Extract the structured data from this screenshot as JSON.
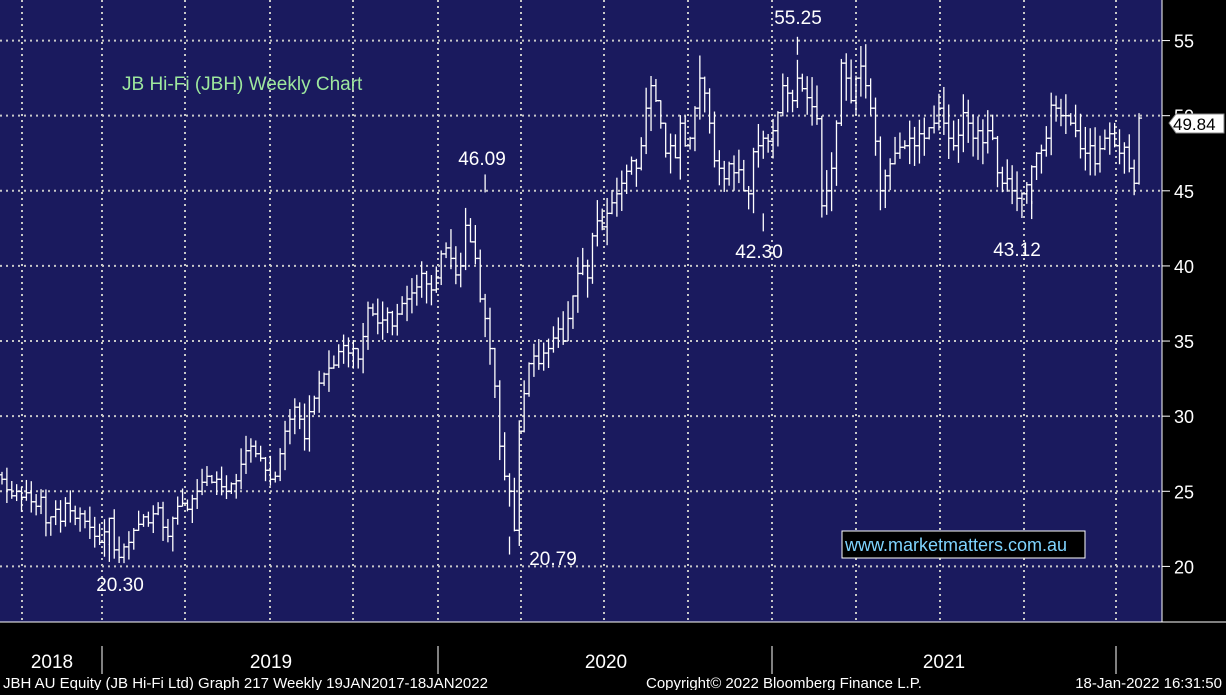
{
  "chart_data": {
    "type": "ohlc",
    "title": "JB Hi-Fi (JBH) Weekly Chart",
    "watermark": "www.marketmatters.com.au",
    "ylim": [
      16.3,
      57.7
    ],
    "y_ticks": [
      20,
      25,
      30,
      35,
      40,
      45,
      50,
      55
    ],
    "x_tick_labels": [
      "2018",
      "2019",
      "2020",
      "2021"
    ],
    "grid": true,
    "last_price": "49.84",
    "annotations": [
      {
        "text": "20.30",
        "value": 20.3
      },
      {
        "text": "46.09",
        "value": 46.09
      },
      {
        "text": "20.79",
        "value": 20.79
      },
      {
        "text": "42.30",
        "value": 42.3
      },
      {
        "text": "55.25",
        "value": 55.25
      },
      {
        "text": "43.12",
        "value": 43.12
      }
    ],
    "footer": {
      "left": "JBH AU Equity (JB Hi-Fi Ltd) Graph 217  Weekly 19JAN2017-18JAN2022",
      "center": "Copyright© 2022 Bloomberg Finance L.P.",
      "right": "18-Jan-2022 16:31:50"
    },
    "colors": {
      "background": "#1a1a5e",
      "bars": "#ffffff",
      "grid": "#c8c8c8",
      "title": "#9ee89e",
      "watermark": "#7fd4ff",
      "axis_panel": "#000000"
    },
    "weekly_close": [
      25.8,
      25.1,
      24.7,
      25.0,
      24.6,
      24.9,
      24.3,
      24.0,
      24.6,
      22.9,
      23.3,
      23.8,
      23.0,
      24.2,
      23.7,
      23.2,
      23.5,
      23.0,
      22.6,
      22.0,
      21.6,
      22.3,
      23.2,
      21.1,
      20.6,
      21.3,
      21.6,
      22.4,
      22.8,
      23.3,
      22.9,
      23.5,
      23.9,
      22.6,
      22.0,
      23.2,
      24.0,
      24.2,
      23.8,
      24.5,
      25.0,
      25.6,
      26.0,
      25.6,
      25.8,
      25.3,
      25.0,
      25.5,
      25.7,
      26.8,
      27.7,
      28.0,
      27.5,
      27.2,
      26.4,
      25.8,
      26.0,
      27.5,
      29.0,
      29.8,
      30.6,
      29.8,
      28.5,
      30.3,
      31.2,
      32.2,
      32.8,
      33.2,
      33.4,
      34.3,
      34.7,
      34.2,
      34.5,
      33.8,
      35.3,
      37.2,
      36.8,
      36.2,
      36.4,
      36.9,
      36.0,
      36.8,
      37.5,
      37.8,
      38.2,
      38.6,
      39.5,
      38.8,
      38.4,
      39.2,
      40.8,
      41.2,
      40.5,
      39.4,
      40.0,
      42.7,
      41.6,
      40.5,
      37.8,
      36.5,
      34.5,
      32.0,
      28.0,
      26.0,
      25.0,
      22.4,
      29.0,
      31.5,
      33.5,
      34.0,
      33.5,
      34.2,
      34.5,
      35.2,
      35.8,
      35.0,
      36.5,
      38.0,
      39.5,
      40.0,
      39.2,
      42.0,
      43.0,
      42.6,
      43.5,
      44.2,
      44.8,
      45.5,
      46.3,
      47.0,
      46.5,
      48.0,
      50.5,
      52.0,
      51.0,
      49.5,
      47.5,
      48.0,
      47.2,
      49.5,
      48.0,
      48.5,
      50.5,
      52.5,
      51.5,
      49.5,
      47.0,
      46.5,
      45.8,
      46.8,
      46.2,
      46.4,
      45.0,
      44.8,
      47.6,
      48.0,
      48.5,
      48.3,
      49.0,
      50.2,
      52.0,
      51.5,
      51.0,
      52.5,
      51.8,
      51.2,
      50.6,
      49.8,
      44.0,
      45.0,
      46.5,
      49.5,
      53.5,
      52.5,
      51.0,
      52.5,
      53.3,
      52.0,
      50.5,
      48.3,
      45.0,
      46.0,
      46.8,
      47.5,
      47.9,
      48.0,
      48.5,
      48.0,
      48.8,
      48.5,
      49.2,
      49.5,
      50.5,
      49.5,
      48.5,
      48.0,
      48.7,
      50.2,
      49.5,
      48.5,
      49.0,
      48.2,
      49.0,
      48.5,
      46.2,
      45.5,
      45.8,
      45.0,
      44.5,
      44.8,
      45.4,
      46.6,
      47.5,
      47.7,
      48.5,
      50.7,
      50.5,
      50.0,
      50.0,
      49.5,
      49.0,
      47.8,
      47.5,
      48.0,
      46.8,
      47.8,
      48.5,
      48.8,
      48.0,
      47.5,
      47.9,
      46.5,
      45.5,
      49.84
    ]
  }
}
